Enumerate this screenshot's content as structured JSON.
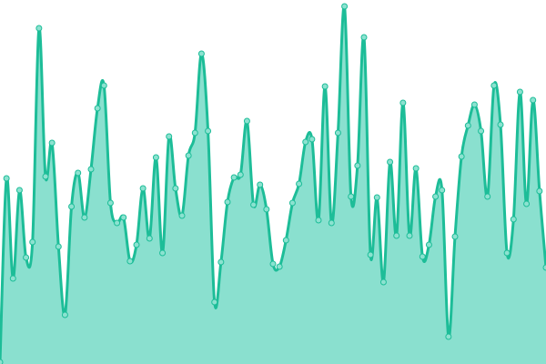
{
  "chart_data": {
    "type": "area",
    "title": "",
    "xlabel": "",
    "ylabel": "",
    "ylim": [
      0,
      400
    ],
    "grid": false,
    "legend": "none",
    "smooth": true,
    "markers": true,
    "colors": {
      "line": "#1dbd98",
      "fill": "#8ae0cf",
      "marker_fill": "#8ce2d0",
      "marker_stroke": "#1dbd98"
    },
    "series": [
      {
        "values": [
          2,
          204,
          94,
          191,
          117,
          134,
          369,
          206,
          243,
          129,
          54,
          173,
          210,
          161,
          214,
          281,
          306,
          177,
          155,
          161,
          113,
          131,
          193,
          138,
          227,
          122,
          250,
          193,
          163,
          229,
          254,
          341,
          256,
          68,
          112,
          178,
          205,
          208,
          267,
          175,
          197,
          170,
          110,
          107,
          136,
          177,
          198,
          244,
          247,
          158,
          305,
          155,
          254,
          393,
          184,
          218,
          359,
          120,
          183,
          90,
          222,
          141,
          287,
          141,
          215,
          118,
          131,
          184,
          191,
          30,
          140,
          228,
          262,
          285,
          256,
          184,
          306,
          263,
          122,
          159,
          299,
          176,
          290,
          190,
          106
        ]
      }
    ]
  }
}
